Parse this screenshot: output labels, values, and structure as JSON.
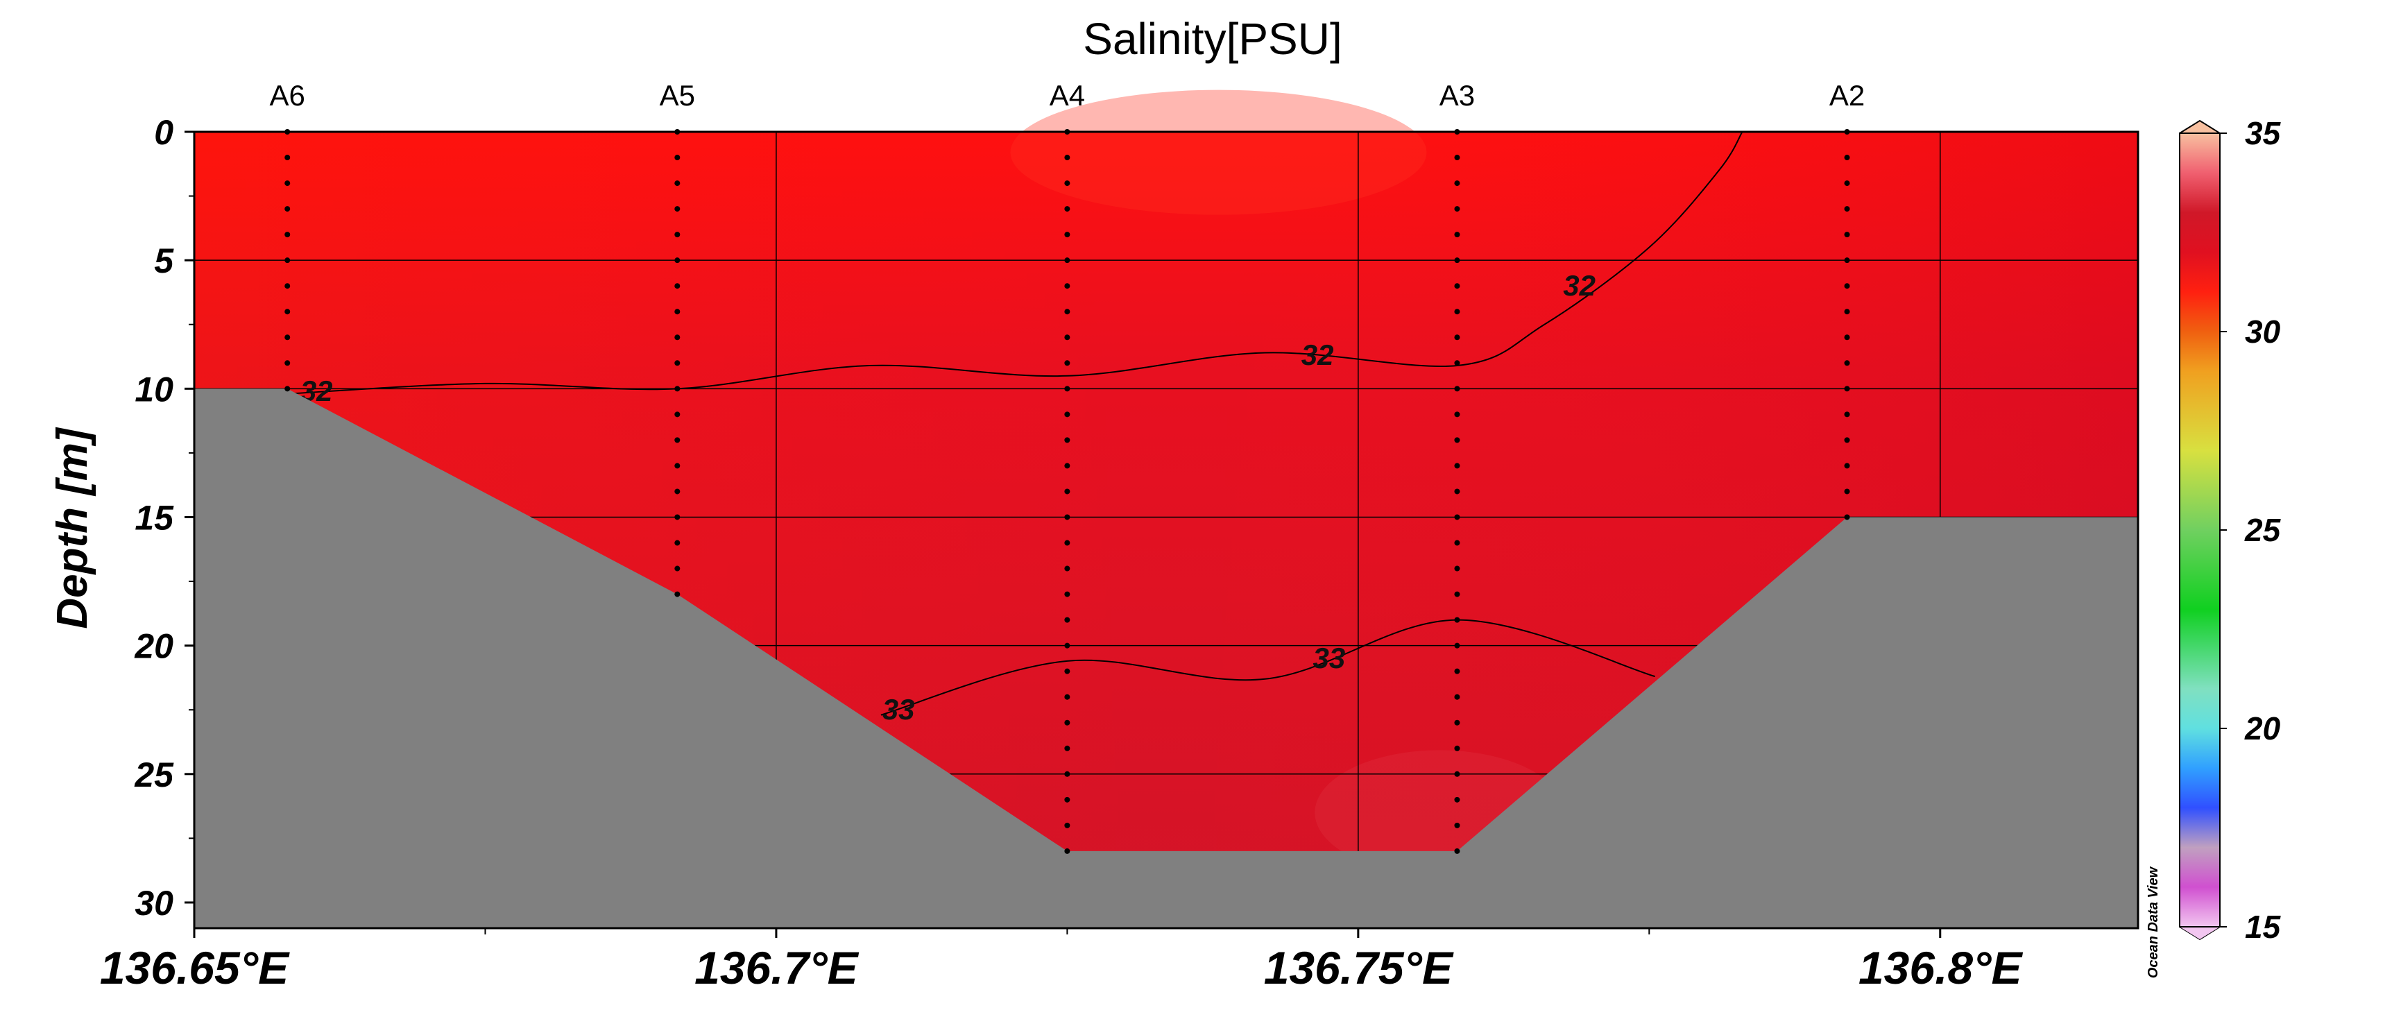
{
  "chart_data": {
    "type": "heatmap",
    "title": "Salinity[PSU]",
    "ylabel": "Depth [m]",
    "xlabel": "",
    "xlim": [
      136.65,
      136.817
    ],
    "ylim": [
      31,
      0
    ],
    "y_reversed": true,
    "grid": true,
    "x_ticks": [
      {
        "value": 136.65,
        "label": "136.65°E"
      },
      {
        "value": 136.7,
        "label": "136.7°E"
      },
      {
        "value": 136.75,
        "label": "136.75°E"
      },
      {
        "value": 136.8,
        "label": "136.8°E"
      }
    ],
    "y_ticks": [
      {
        "value": 0,
        "label": "0"
      },
      {
        "value": 5,
        "label": "5"
      },
      {
        "value": 10,
        "label": "10"
      },
      {
        "value": 15,
        "label": "15"
      },
      {
        "value": 20,
        "label": "20"
      },
      {
        "value": 25,
        "label": "25"
      },
      {
        "value": 30,
        "label": "30"
      }
    ],
    "stations": [
      {
        "name": "A6",
        "lon": 136.658,
        "max_depth": 10
      },
      {
        "name": "A5",
        "lon": 136.6915,
        "max_depth": 18
      },
      {
        "name": "A4",
        "lon": 136.725,
        "max_depth": 28
      },
      {
        "name": "A3",
        "lon": 136.7585,
        "max_depth": 28
      },
      {
        "name": "A2",
        "lon": 136.792,
        "max_depth": 15
      }
    ],
    "bathymetry": [
      {
        "lon": 136.65,
        "depth": 10
      },
      {
        "lon": 136.658,
        "depth": 10
      },
      {
        "lon": 136.6915,
        "depth": 18
      },
      {
        "lon": 136.725,
        "depth": 28
      },
      {
        "lon": 136.7585,
        "depth": 28
      },
      {
        "lon": 136.792,
        "depth": 15
      },
      {
        "lon": 136.817,
        "depth": 15
      }
    ],
    "contours": [
      {
        "label": "32",
        "points": [
          [
            136.658,
            10.2
          ],
          [
            136.675,
            9.8
          ],
          [
            136.6915,
            10.0
          ],
          [
            136.708,
            9.1
          ],
          [
            136.725,
            9.5
          ],
          [
            136.742,
            8.6
          ],
          [
            136.7585,
            9.1
          ],
          [
            136.766,
            7.5
          ],
          [
            136.775,
            4.5
          ],
          [
            136.781,
            1.5
          ],
          [
            136.783,
            0
          ]
        ],
        "labels_at": [
          [
            136.6605,
            10.1
          ],
          [
            136.7465,
            8.7
          ],
          [
            136.769,
            6.0
          ]
        ]
      },
      {
        "label": "33",
        "points": [
          [
            136.709,
            22.7
          ],
          [
            136.725,
            20.6
          ],
          [
            136.742,
            21.3
          ],
          [
            136.7585,
            19.0
          ],
          [
            136.7755,
            21.2
          ]
        ],
        "labels_at": [
          [
            136.7105,
            22.5
          ],
          [
            136.7475,
            20.5
          ]
        ]
      }
    ],
    "colorbar": {
      "min": 15,
      "max": 35,
      "ticks": [
        "15",
        "20",
        "25",
        "30",
        "35"
      ],
      "stops": [
        {
          "value": 15,
          "color": "#f2c6f0"
        },
        {
          "value": 16,
          "color": "#d050d0"
        },
        {
          "value": 17,
          "color": "#c0a0c0"
        },
        {
          "value": 18,
          "color": "#3050ff"
        },
        {
          "value": 19,
          "color": "#30a0ff"
        },
        {
          "value": 20,
          "color": "#60e0e0"
        },
        {
          "value": 21,
          "color": "#80e0c0"
        },
        {
          "value": 23,
          "color": "#10d020"
        },
        {
          "value": 25,
          "color": "#70d060"
        },
        {
          "value": 27,
          "color": "#d8e040"
        },
        {
          "value": 29,
          "color": "#f0a020"
        },
        {
          "value": 30,
          "color": "#f06010"
        },
        {
          "value": 31,
          "color": "#ff2010"
        },
        {
          "value": 32,
          "color": "#e01020"
        },
        {
          "value": 33,
          "color": "#d01828"
        },
        {
          "value": 34,
          "color": "#f06070"
        },
        {
          "value": 35,
          "color": "#f8c0a0"
        }
      ]
    },
    "colors": {
      "surface": "#ff1010",
      "mid": "#e81020",
      "deep": "#d21428",
      "bottom_land": "#808080"
    }
  },
  "watermark": "Ocean Data View"
}
